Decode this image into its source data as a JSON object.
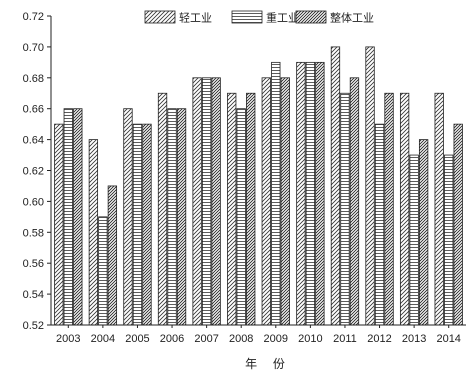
{
  "chart_data": {
    "type": "bar",
    "title": "",
    "xlabel": "年 份",
    "ylabel": "",
    "ylim": [
      0.52,
      0.72
    ],
    "yticks": [
      "0.52",
      "0.54",
      "0.56",
      "0.58",
      "0.60",
      "0.62",
      "0.64",
      "0.66",
      "0.68",
      "0.70",
      "0.72"
    ],
    "categories": [
      "2003",
      "2004",
      "2005",
      "2006",
      "2007",
      "2008",
      "2009",
      "2010",
      "2011",
      "2012",
      "2013",
      "2014"
    ],
    "series": [
      {
        "name": "轻工业",
        "pattern": "diagonal",
        "values": [
          0.65,
          0.64,
          0.66,
          0.67,
          0.68,
          0.67,
          0.68,
          0.69,
          0.7,
          0.7,
          0.67,
          0.67
        ]
      },
      {
        "name": "重工业",
        "pattern": "horizontal",
        "values": [
          0.66,
          0.59,
          0.65,
          0.66,
          0.68,
          0.66,
          0.69,
          0.69,
          0.67,
          0.65,
          0.63,
          0.63
        ]
      },
      {
        "name": "整体工业",
        "pattern": "dense",
        "values": [
          0.66,
          0.61,
          0.65,
          0.66,
          0.68,
          0.67,
          0.68,
          0.69,
          0.68,
          0.67,
          0.64,
          0.65
        ]
      }
    ],
    "legend_position": "top-right",
    "grid": false
  }
}
